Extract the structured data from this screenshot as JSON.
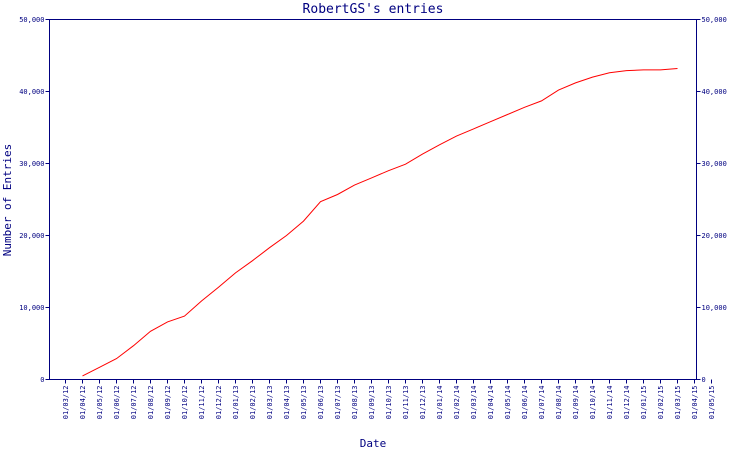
{
  "chart_data": {
    "type": "line",
    "title": "RobertGS's entries",
    "xlabel": "Date",
    "ylabel": "Number of Entries",
    "ylim": [
      0,
      50000
    ],
    "yticks": [
      "0",
      "10,000",
      "20,000",
      "30,000",
      "40,000",
      "50,000"
    ],
    "y_tick_values": [
      0,
      10000,
      20000,
      30000,
      40000,
      50000
    ],
    "categories": [
      "01/03/12",
      "01/04/12",
      "01/05/12",
      "01/06/12",
      "01/07/12",
      "01/08/12",
      "01/09/12",
      "01/10/12",
      "01/11/12",
      "01/12/12",
      "01/01/13",
      "01/02/13",
      "01/03/13",
      "01/04/13",
      "01/05/13",
      "01/06/13",
      "01/07/13",
      "01/08/13",
      "01/09/13",
      "01/10/13",
      "01/11/13",
      "01/12/13",
      "01/01/14",
      "01/02/14",
      "01/03/14",
      "01/04/14",
      "01/05/14",
      "01/06/14",
      "01/07/14",
      "01/08/14",
      "01/09/14",
      "01/10/14",
      "01/11/14",
      "01/12/14",
      "01/01/15",
      "01/02/15",
      "01/03/15",
      "01/04/15",
      "01/05/15"
    ],
    "series": [
      {
        "color": "#ff0000",
        "values": [
          null,
          500,
          1700,
          2900,
          4700,
          6700,
          8000,
          8800,
          10900,
          12800,
          14800,
          16500,
          18300,
          20000,
          22000,
          24700,
          25700,
          27000,
          28000,
          29000,
          29900,
          31300,
          32600,
          33800,
          34800,
          35800,
          36800,
          37800,
          38700,
          40200,
          41200,
          42000,
          42600,
          42900,
          43000,
          43000,
          43200,
          null,
          null
        ]
      }
    ],
    "grid": false,
    "legend": "none"
  }
}
